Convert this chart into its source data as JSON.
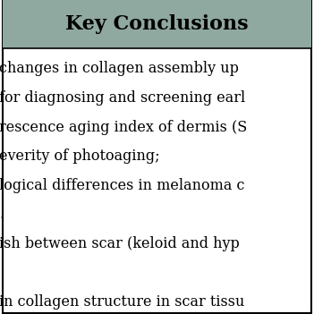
{
  "title": "Key Conclusions",
  "title_bg_color": "#8fa8a0",
  "title_font_size": 16,
  "title_font_weight": "bold",
  "content_bg_color": "#ffffff",
  "border_color": "#000000",
  "text_lines": [
    "changes in collagen assembly up",
    "for diagnosing and screening earl",
    "rescence aging index of dermis (S",
    "everity of photoaging;",
    "logical differences in melanoma c",
    ".",
    "ish between scar (keloid and hyp",
    "",
    "in collagen structure in scar tissu"
  ],
  "text_font_size": 11.5,
  "text_color": "#000000",
  "fig_width": 3.51,
  "fig_height": 3.51,
  "dpi": 100
}
